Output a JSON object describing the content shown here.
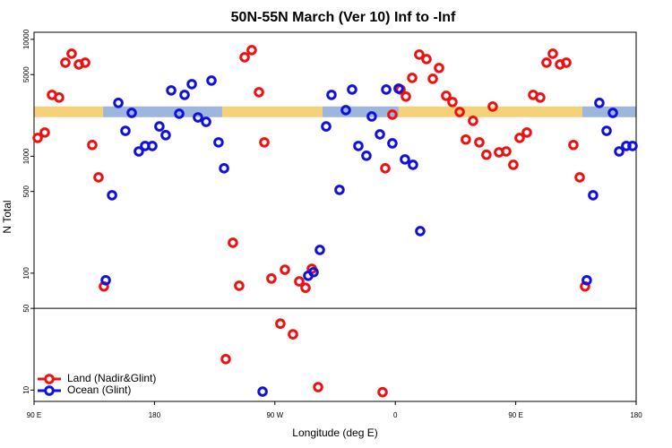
{
  "chart_data": {
    "type": "scatter",
    "title": "50N-55N March (Ver 10)   Inf to -Inf",
    "xlabel": "Longitude (deg E)",
    "ylabel": "N Total",
    "xlim": [
      90,
      540
    ],
    "ylim": [
      8,
      11500
    ],
    "log_y": true,
    "xticks": [
      {
        "value": 90,
        "label": "90 E"
      },
      {
        "value": 180,
        "label": "180"
      },
      {
        "value": 270,
        "label": "90 W"
      },
      {
        "value": 360,
        "label": "0"
      },
      {
        "value": 450,
        "label": "90 E"
      },
      {
        "value": 540,
        "label": "180"
      }
    ],
    "yticks": [
      10,
      50,
      100,
      500,
      1000,
      5000,
      10000
    ],
    "divider_y": 50,
    "legend": "lower left",
    "bands": [
      {
        "x": [
          90,
          141.6
        ],
        "y": 2400,
        "color": "#f5d27a"
      },
      {
        "x": [
          141.6,
          230.6
        ],
        "y": 2400,
        "color": "#9db6dd"
      },
      {
        "x": [
          230.6,
          305.6
        ],
        "y": 2400,
        "color": "#f5d27a"
      },
      {
        "x": [
          305.6,
          362.5
        ],
        "y": 2400,
        "color": "#9db6dd"
      },
      {
        "x": [
          362.5,
          499.8
        ],
        "y": 2400,
        "color": "#f5d27a"
      },
      {
        "x": [
          499.8,
          540
        ],
        "y": 2400,
        "color": "#9db6dd"
      }
    ],
    "series": [
      {
        "name": "Land (Nadir&Glint)",
        "color": "#ee1111",
        "x": [
          92.7,
          98,
          103.4,
          108.7,
          113.4,
          118.1,
          123.5,
          128.2,
          133.5,
          138.2,
          142.2,
          238.6,
          243.3,
          247.4,
          252.7,
          258.1,
          262.1,
          267.4,
          277.5,
          288.2,
          292.9,
          297.6,
          233.3,
          274.1,
          283.5,
          302.3,
          350.5,
          352.5,
          357.8,
          363.9,
          367.9,
          372.6,
          377.9,
          383.3,
          388.0,
          392.7,
          398.0,
          402.7,
          408.1,
          412.7,
          418.1,
          422.8,
          428.1,
          432.8,
          437.5,
          442.9,
          448.2,
          452.9,
          458.3,
          463.0,
          468.3,
          473.0,
          477.7,
          483.1,
          487.8,
          493.1,
          497.8,
          501.8
        ],
        "values": [
          1435,
          1597,
          3350,
          3180,
          6320,
          7540,
          6100,
          6320,
          1250,
          660,
          77,
          182,
          78,
          7030,
          8090,
          3530,
          1315,
          90,
          107,
          85,
          75,
          109,
          18.4,
          37,
          30,
          10.6,
          9.6,
          789,
          2270,
          3720,
          3240,
          4680,
          7410,
          6780,
          4600,
          5690,
          3290,
          2910,
          2390,
          1390,
          2010,
          1315,
          1030,
          2660,
          1080,
          1100,
          845,
          1435,
          1597,
          3350,
          3180,
          6320,
          7540,
          6100,
          6320,
          1250,
          660,
          77
        ]
      },
      {
        "name": "Ocean (Glint)",
        "color": "#1111dd",
        "x": [
          143.6,
          148.3,
          153.0,
          158.3,
          163.0,
          168.3,
          173.0,
          178.4,
          183.7,
          188.4,
          192.5,
          198.5,
          202.5,
          207.9,
          212.5,
          218.6,
          222.6,
          227.9,
          232.0,
          260.8,
          294.9,
          298.9,
          303.6,
          308.3,
          312.3,
          318.3,
          323.0,
          327.7,
          332.4,
          338.4,
          342.4,
          348.5,
          353.2,
          357.8,
          362.5,
          367.2,
          373.2,
          378.6,
          503.1,
          507.8,
          512.5,
          517.9,
          522.6,
          527.3,
          532.6,
          537.3
        ],
        "values": [
          87,
          464,
          2860,
          1650,
          2350,
          1100,
          1225,
          1225,
          1800,
          1515,
          3660,
          2310,
          3350,
          4140,
          2150,
          1970,
          4440,
          1315,
          789,
          9.7,
          95,
          102,
          158,
          1800,
          3350,
          516,
          2480,
          3720,
          1225,
          1010,
          2190,
          1540,
          3720,
          1290,
          3790,
          940,
          845,
          229,
          87,
          464,
          2860,
          1650,
          2350,
          1100,
          1225,
          1225
        ]
      }
    ]
  }
}
